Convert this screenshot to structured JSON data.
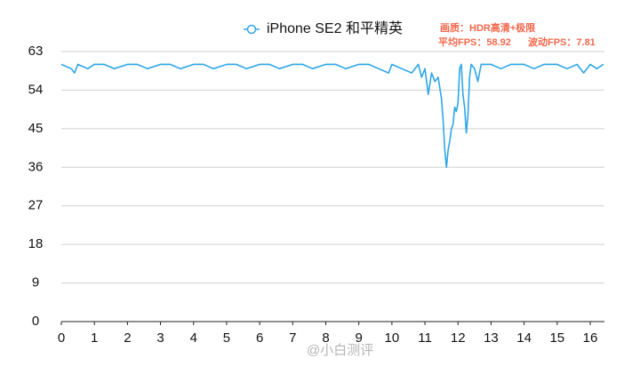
{
  "chart_data": {
    "type": "line",
    "x": [
      0,
      0.3,
      0.4,
      0.5,
      0.8,
      1,
      1.3,
      1.6,
      2,
      2.3,
      2.6,
      3,
      3.3,
      3.6,
      4,
      4.3,
      4.6,
      5,
      5.3,
      5.6,
      6,
      6.3,
      6.6,
      7,
      7.3,
      7.6,
      8,
      8.3,
      8.6,
      9,
      9.3,
      9.6,
      9.9,
      10,
      10.3,
      10.6,
      10.8,
      10.9,
      11,
      11.1,
      11.2,
      11.3,
      11.4,
      11.5,
      11.55,
      11.6,
      11.65,
      11.7,
      11.75,
      11.8,
      11.85,
      11.9,
      11.95,
      12,
      12.05,
      12.1,
      12.15,
      12.2,
      12.25,
      12.3,
      12.35,
      12.4,
      12.5,
      12.6,
      12.7,
      13,
      13.3,
      13.6,
      14,
      14.3,
      14.6,
      15,
      15.3,
      15.6,
      15.8,
      16,
      16.2,
      16.4
    ],
    "series": [
      {
        "name": "iPhone SE2 和平精英",
        "color": "#2ea6e6",
        "values": [
          60,
          59,
          58,
          60,
          59,
          60,
          60,
          59,
          60,
          60,
          59,
          60,
          60,
          59,
          60,
          60,
          59,
          60,
          60,
          59,
          60,
          60,
          59,
          60,
          60,
          59,
          60,
          60,
          59,
          60,
          60,
          59,
          58,
          60,
          59,
          58,
          60,
          57,
          59,
          53,
          58,
          56,
          57,
          52,
          47,
          40,
          36,
          40,
          42,
          45,
          46,
          50,
          49,
          51,
          59,
          60,
          53,
          50,
          44,
          48,
          57,
          60,
          59,
          56,
          60,
          60,
          59,
          60,
          60,
          59,
          60,
          60,
          59,
          60,
          58,
          60,
          59,
          60
        ]
      }
    ],
    "xlim": [
      0,
      16.43
    ],
    "xticks": [
      0,
      1,
      2,
      3,
      4,
      5,
      6,
      7,
      8,
      9,
      10,
      11,
      12,
      13,
      14,
      15,
      16
    ],
    "ylim": [
      0,
      63
    ],
    "yticks": [
      0,
      9,
      18,
      27,
      36,
      45,
      54,
      63
    ],
    "grid": true,
    "legend": "top",
    "annotations": [
      "画质：HDR高清+极限",
      "平均FPS：58.92",
      "波动FPS：7.81"
    ],
    "watermark": "@小白测评"
  }
}
